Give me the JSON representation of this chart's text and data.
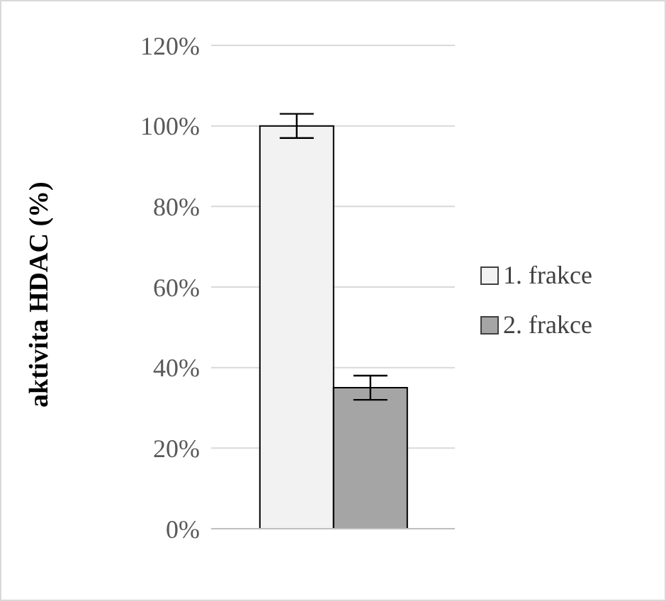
{
  "chart_data": {
    "type": "bar",
    "ylabel": "aktivita HDAC (%)",
    "categories": [
      null
    ],
    "series": [
      {
        "name": "1. frakce",
        "color": "#f2f2f2",
        "values": [
          100
        ],
        "errors": [
          3
        ]
      },
      {
        "name": "2. frakce",
        "color": "#a5a5a5",
        "values": [
          35
        ],
        "errors": [
          3
        ]
      }
    ],
    "ylim": [
      0,
      120
    ],
    "yticks": [
      {
        "value": 0,
        "label": "0%"
      },
      {
        "value": 20,
        "label": "20%"
      },
      {
        "value": 40,
        "label": "40%"
      },
      {
        "value": 60,
        "label": "60%"
      },
      {
        "value": 80,
        "label": "80%"
      },
      {
        "value": 100,
        "label": "100%"
      },
      {
        "value": 120,
        "label": "120%"
      }
    ],
    "grid": "y",
    "legend": "right"
  }
}
